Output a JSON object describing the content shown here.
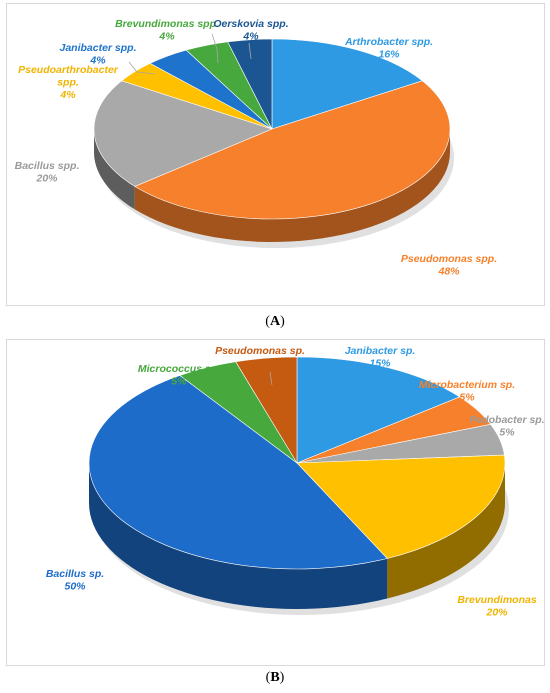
{
  "chart_data": [
    {
      "type": "pie",
      "panel_caption": "A",
      "three_d": true,
      "slices": [
        {
          "name": "Arthrobacter spp.",
          "value": 16,
          "label": "16%",
          "color": "#2e9ae3"
        },
        {
          "name": "Pseudomonas spp.",
          "value": 48,
          "label": "48%",
          "color": "#f6802b"
        },
        {
          "name": "Bacillus spp.",
          "value": 20,
          "label": "20%",
          "color": "#a9a9a9"
        },
        {
          "name": "Pseudoarthrobacter spp.",
          "value": 4,
          "label": "4%",
          "color": "#ffc000"
        },
        {
          "name": "Janibacter spp.",
          "value": 4,
          "label": "4%",
          "color": "#1e74cd"
        },
        {
          "name": "Brevundimonas spp.",
          "value": 4,
          "label": "4%",
          "color": "#46a83d"
        },
        {
          "name": "Oerskovia spp.",
          "value": 4,
          "label": "4%",
          "color": "#1b5692"
        }
      ]
    },
    {
      "type": "pie",
      "panel_caption": "B",
      "three_d": true,
      "slices": [
        {
          "name": "Janibacter sp.",
          "value": 15,
          "label": "15%",
          "color": "#2e9ae3"
        },
        {
          "name": "Microbacterium sp.",
          "value": 5,
          "label": "5%",
          "color": "#f6802b"
        },
        {
          "name": "Pedobacter sp.",
          "value": 5,
          "label": "5%",
          "color": "#a9a9a9"
        },
        {
          "name": "Brevundimonas",
          "value": 20,
          "label": "20%",
          "color": "#ffc000"
        },
        {
          "name": "Bacillus sp.",
          "value": 50,
          "label": "50%",
          "color": "#1e6cc9"
        },
        {
          "name": "Micrococcus sp.",
          "value": 5,
          "label": "5%",
          "color": "#46a83d"
        },
        {
          "name": "Pseudomonas sp.",
          "value": 5,
          "label": "5%",
          "color": "#c55a11"
        }
      ]
    }
  ],
  "captions": {
    "a": "A",
    "b": "B"
  }
}
